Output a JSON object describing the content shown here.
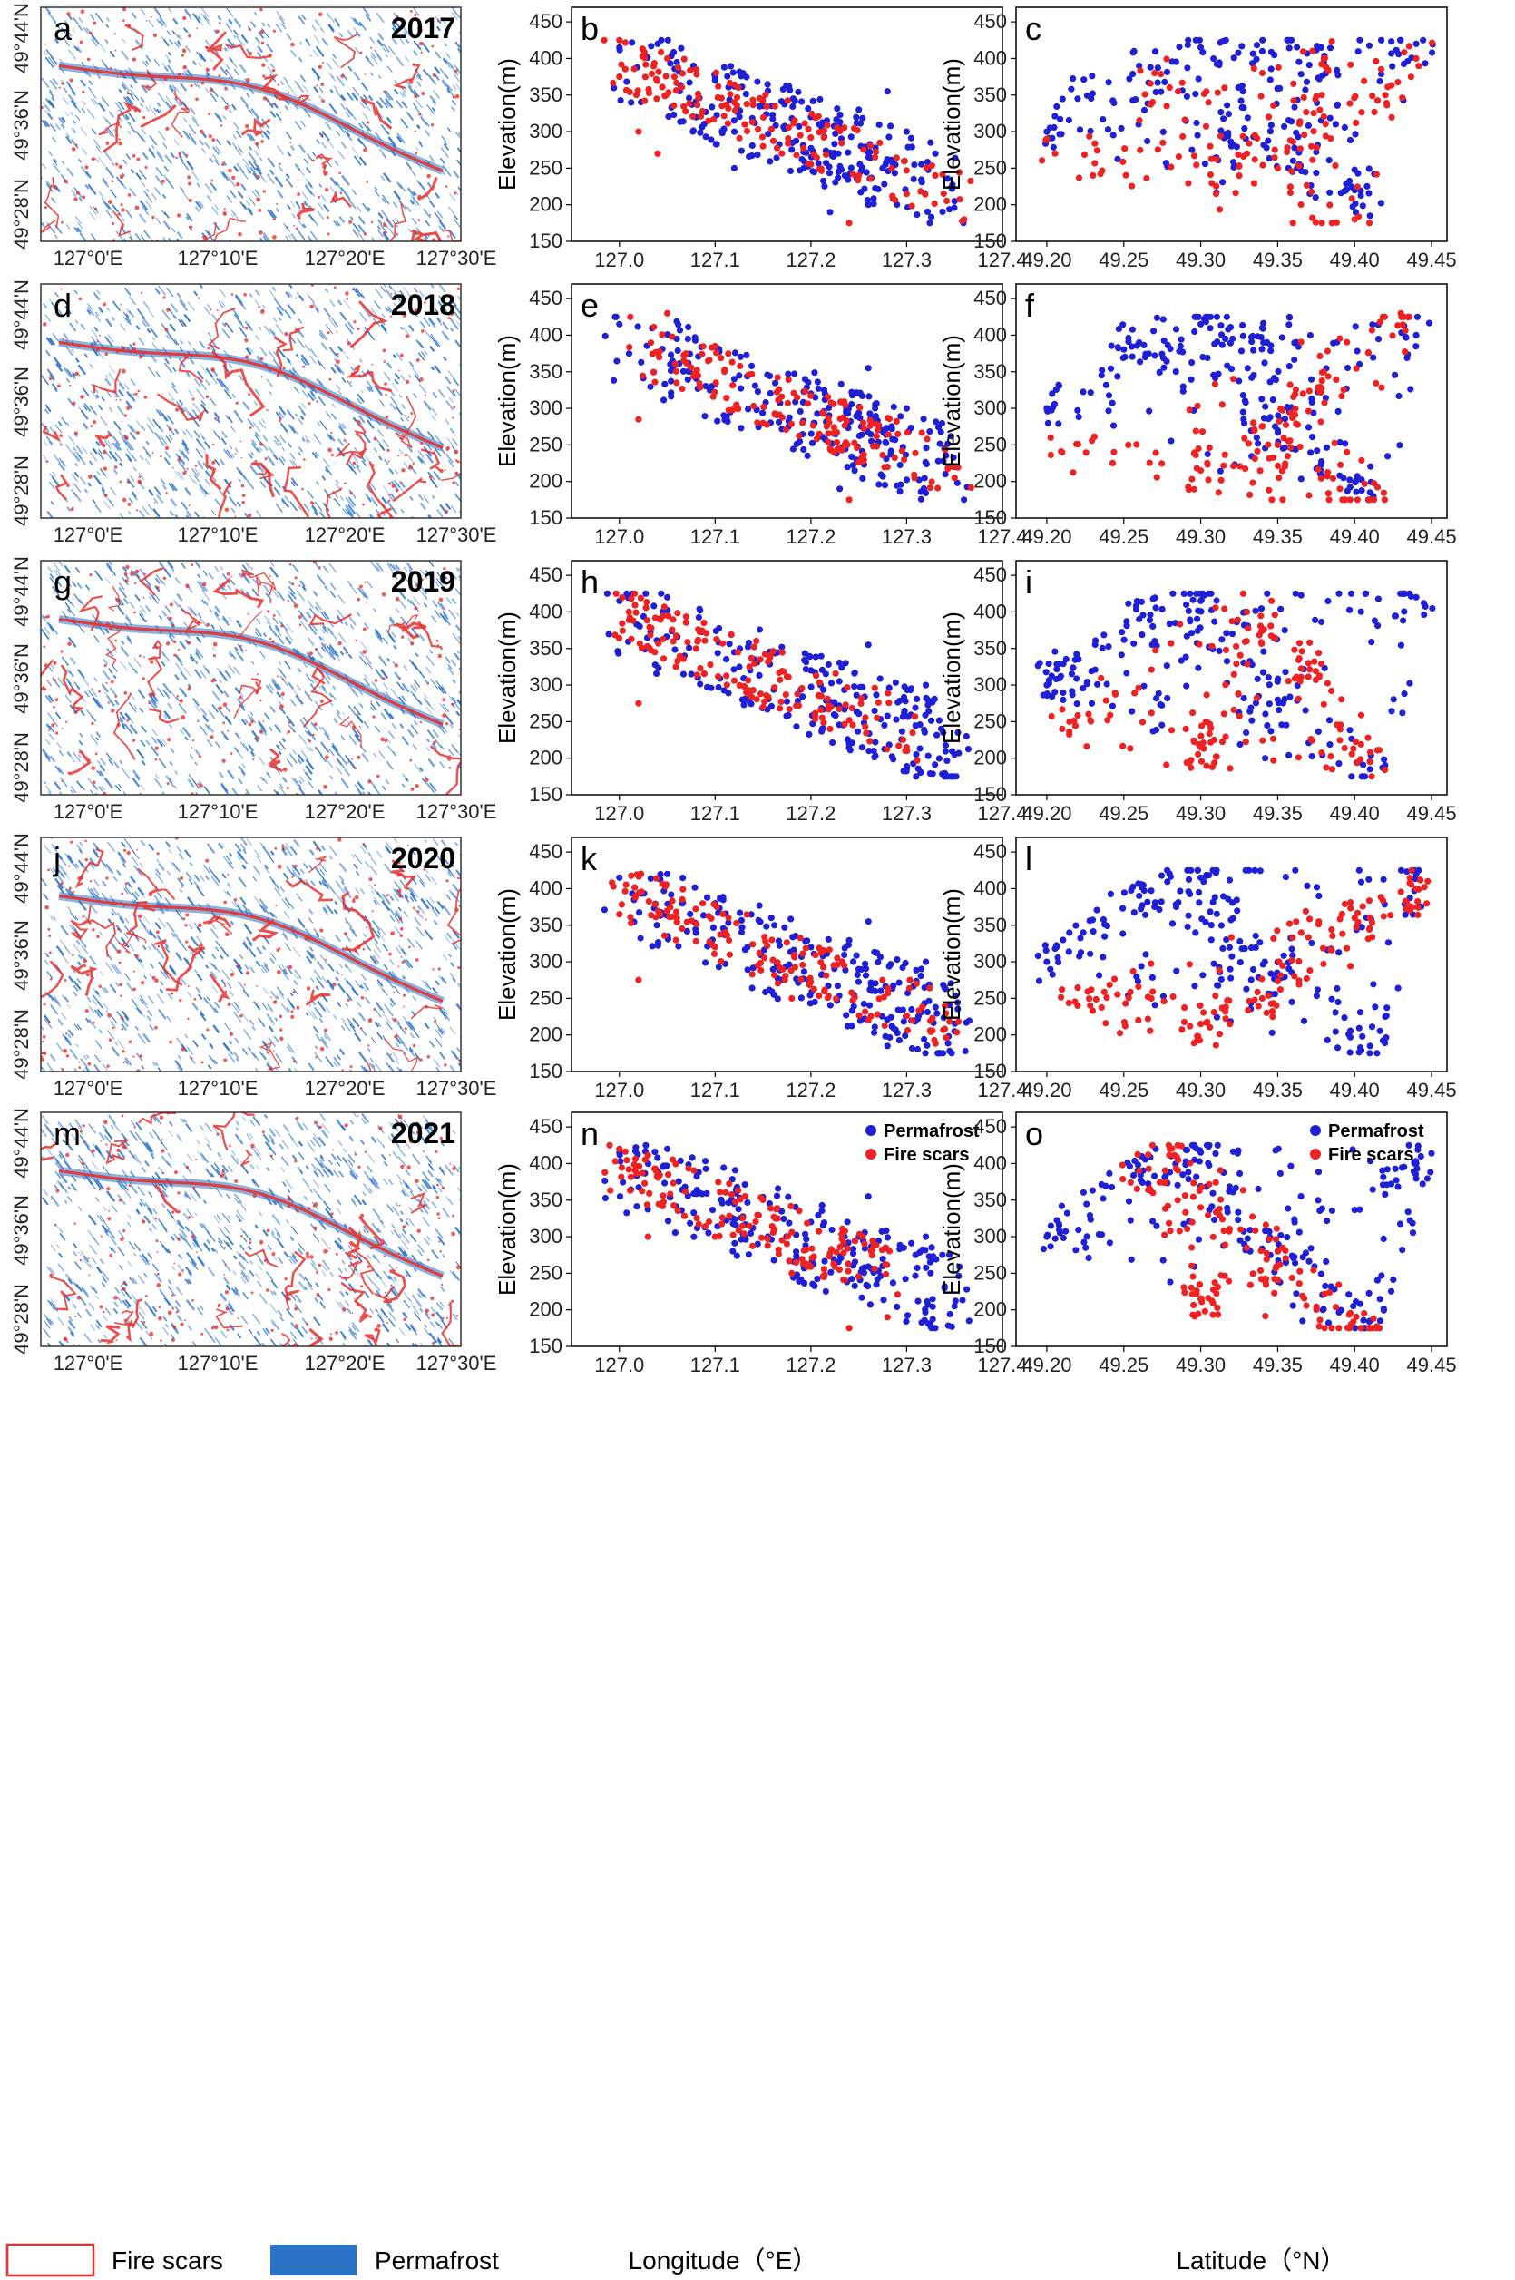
{
  "figure": {
    "map_legend": {
      "fire_label": "Fire scars",
      "permafrost_label": "Permafrost"
    },
    "colors": {
      "permafrost": "#1f1fd6",
      "fire": "#ee2222",
      "map_fire": "#e8312f",
      "map_perm": "#2a72c8"
    },
    "map_x_ticks": [
      "127°0'E",
      "127°10'E",
      "127°20'E",
      "127°30'E"
    ],
    "map_y_ticks": [
      "49°44'N",
      "49°36'N",
      "49°28'N"
    ],
    "bottom_xlabels": {
      "longitude": "Longitude（°E）",
      "latitude": "Latitude（°N）"
    }
  },
  "maps": [
    {
      "letter": "a",
      "year": "2017"
    },
    {
      "letter": "d",
      "year": "2018"
    },
    {
      "letter": "g",
      "year": "2019"
    },
    {
      "letter": "j",
      "year": "2020"
    },
    {
      "letter": "m",
      "year": "2021"
    }
  ],
  "chart_data": [
    {
      "type": "scatter",
      "panel": "b",
      "x_var": "longitude",
      "ylabel": "Elevation(m)",
      "xlim": [
        126.95,
        127.4
      ],
      "ylim": [
        150,
        470
      ],
      "xticks": [
        "127.0",
        "127.1",
        "127.2",
        "127.3",
        "127.4"
      ],
      "yticks": [
        "150",
        "200",
        "250",
        "300",
        "350",
        "400",
        "450"
      ],
      "legend": false,
      "seed": 11,
      "series": [
        {
          "name": "Permafrost",
          "values": [
            [
              127.0,
              415
            ],
            [
              127.04,
              420
            ],
            [
              127.06,
              395
            ],
            [
              127.1,
              370
            ],
            [
              127.15,
              335
            ],
            [
              127.2,
              320
            ],
            [
              127.25,
              330
            ],
            [
              127.28,
              355
            ],
            [
              127.3,
              300
            ],
            [
              127.33,
              270
            ],
            [
              127.35,
              205
            ],
            [
              127.22,
              190
            ],
            [
              127.26,
              200
            ],
            [
              127.12,
              250
            ]
          ]
        },
        {
          "name": "Fire scars",
          "values": [
            [
              127.0,
              375
            ],
            [
              127.05,
              400
            ],
            [
              127.08,
              385
            ],
            [
              127.12,
              340
            ],
            [
              127.15,
              280
            ],
            [
              127.2,
              255
            ],
            [
              127.25,
              240
            ],
            [
              127.3,
              215
            ],
            [
              127.33,
              240
            ],
            [
              127.36,
              180
            ],
            [
              127.24,
              175
            ],
            [
              127.02,
              300
            ],
            [
              127.04,
              270
            ]
          ]
        }
      ]
    },
    {
      "type": "scatter",
      "panel": "c",
      "x_var": "latitude",
      "ylabel": "Elevation(m)",
      "xlim": [
        49.18,
        49.46
      ],
      "ylim": [
        150,
        470
      ],
      "xticks": [
        "49.20",
        "49.25",
        "49.30",
        "49.35",
        "49.40",
        "49.45"
      ],
      "yticks": [
        "150",
        "200",
        "250",
        "300",
        "350",
        "400",
        "450"
      ],
      "legend": false,
      "seed": 12,
      "series": [
        {
          "name": "Permafrost",
          "values": [
            [
              49.2,
              300
            ],
            [
              49.22,
              345
            ],
            [
              49.26,
              390
            ],
            [
              49.3,
              415
            ],
            [
              49.34,
              410
            ],
            [
              49.38,
              395
            ],
            [
              49.4,
              220
            ],
            [
              49.41,
              185
            ],
            [
              49.44,
              420
            ],
            [
              49.32,
              280
            ],
            [
              49.36,
              260
            ]
          ]
        },
        {
          "name": "Fire scars",
          "values": [
            [
              49.2,
              290
            ],
            [
              49.23,
              240
            ],
            [
              49.27,
              380
            ],
            [
              49.31,
              215
            ],
            [
              49.35,
              250
            ],
            [
              49.38,
              400
            ],
            [
              49.4,
              180
            ],
            [
              49.42,
              350
            ],
            [
              49.44,
              400
            ],
            [
              49.33,
              270
            ]
          ]
        }
      ]
    },
    {
      "type": "scatter",
      "panel": "e",
      "x_var": "longitude",
      "ylabel": "Elevation(m)",
      "xlim": [
        126.95,
        127.4
      ],
      "ylim": [
        150,
        470
      ],
      "xticks": [
        "127.0",
        "127.1",
        "127.2",
        "127.3",
        "127.4"
      ],
      "yticks": [
        "150",
        "200",
        "250",
        "300",
        "350",
        "400",
        "450"
      ],
      "legend": false,
      "seed": 21,
      "series": [
        {
          "name": "Permafrost",
          "values": [
            [
              127.0,
              415
            ],
            [
              127.06,
              395
            ],
            [
              127.12,
              340
            ],
            [
              127.2,
              320
            ],
            [
              127.26,
              355
            ],
            [
              127.3,
              300
            ],
            [
              127.35,
              220
            ],
            [
              127.23,
              190
            ]
          ]
        },
        {
          "name": "Fire scars",
          "values": [
            [
              127.05,
              430
            ],
            [
              127.1,
              385
            ],
            [
              127.15,
              280
            ],
            [
              127.22,
              245
            ],
            [
              127.28,
              220
            ],
            [
              127.35,
              205
            ],
            [
              127.24,
              175
            ],
            [
              127.02,
              285
            ]
          ]
        }
      ]
    },
    {
      "type": "scatter",
      "panel": "f",
      "x_var": "latitude",
      "ylabel": "Elevation(m)",
      "xlim": [
        49.18,
        49.46
      ],
      "ylim": [
        150,
        470
      ],
      "xticks": [
        "49.20",
        "49.25",
        "49.30",
        "49.35",
        "49.40",
        "49.45"
      ],
      "yticks": [
        "150",
        "200",
        "250",
        "300",
        "350",
        "400",
        "450"
      ],
      "legend": false,
      "seed": 22,
      "series": [
        {
          "name": "Permafrost",
          "values": [
            [
              49.2,
              300
            ],
            [
              49.26,
              390
            ],
            [
              49.3,
              415
            ],
            [
              49.34,
              410
            ],
            [
              49.41,
              185
            ],
            [
              49.44,
              400
            ],
            [
              49.35,
              270
            ]
          ]
        },
        {
          "name": "Fire scars",
          "values": [
            [
              49.21,
              240
            ],
            [
              49.3,
              215
            ],
            [
              49.35,
              250
            ],
            [
              49.43,
              430
            ],
            [
              49.41,
              175
            ],
            [
              49.38,
              350
            ]
          ]
        }
      ]
    },
    {
      "type": "scatter",
      "panel": "h",
      "x_var": "longitude",
      "ylabel": "Elevation(m)",
      "xlim": [
        126.95,
        127.4
      ],
      "ylim": [
        150,
        470
      ],
      "xticks": [
        "127.0",
        "127.1",
        "127.2",
        "127.3",
        "127.4"
      ],
      "yticks": [
        "150",
        "200",
        "250",
        "300",
        "350",
        "400",
        "450"
      ],
      "legend": false,
      "seed": 31,
      "series": [
        {
          "name": "Permafrost",
          "values": [
            [
              127.0,
              415
            ],
            [
              127.05,
              420
            ],
            [
              127.12,
              345
            ],
            [
              127.2,
              320
            ],
            [
              127.26,
              355
            ],
            [
              127.32,
              300
            ],
            [
              127.35,
              205
            ],
            [
              127.3,
              185
            ]
          ]
        },
        {
          "name": "Fire scars",
          "values": [
            [
              127.01,
              400
            ],
            [
              127.08,
              350
            ],
            [
              127.15,
              270
            ],
            [
              127.22,
              240
            ],
            [
              127.3,
              215
            ],
            [
              127.02,
              275
            ]
          ]
        }
      ]
    },
    {
      "type": "scatter",
      "panel": "i",
      "x_var": "latitude",
      "ylabel": "Elevation(m)",
      "xlim": [
        49.18,
        49.46
      ],
      "ylim": [
        150,
        470
      ],
      "xticks": [
        "49.20",
        "49.25",
        "49.30",
        "49.35",
        "49.40",
        "49.45"
      ],
      "yticks": [
        "150",
        "200",
        "250",
        "300",
        "350",
        "400",
        "450"
      ],
      "legend": false,
      "seed": 32,
      "series": [
        {
          "name": "Permafrost",
          "values": [
            [
              49.2,
              300
            ],
            [
              49.26,
              390
            ],
            [
              49.3,
              415
            ],
            [
              49.41,
              185
            ],
            [
              49.44,
              420
            ],
            [
              49.35,
              280
            ]
          ]
        },
        {
          "name": "Fire scars",
          "values": [
            [
              49.21,
              240
            ],
            [
              49.3,
              215
            ],
            [
              49.33,
              400
            ],
            [
              49.37,
              330
            ],
            [
              49.41,
              195
            ]
          ]
        }
      ]
    },
    {
      "type": "scatter",
      "panel": "k",
      "x_var": "longitude",
      "ylabel": "Elevation(m)",
      "xlim": [
        126.95,
        127.4
      ],
      "ylim": [
        150,
        470
      ],
      "xticks": [
        "127.0",
        "127.1",
        "127.2",
        "127.3",
        "127.4"
      ],
      "yticks": [
        "150",
        "200",
        "250",
        "300",
        "350",
        "400",
        "450"
      ],
      "legend": false,
      "seed": 41,
      "series": [
        {
          "name": "Permafrost",
          "values": [
            [
              127.0,
              415
            ],
            [
              127.05,
              420
            ],
            [
              127.1,
              380
            ],
            [
              127.2,
              320
            ],
            [
              127.26,
              355
            ],
            [
              127.32,
              300
            ],
            [
              127.35,
              205
            ],
            [
              127.28,
              185
            ]
          ]
        },
        {
          "name": "Fire scars",
          "values": [
            [
              127.0,
              365
            ],
            [
              127.06,
              360
            ],
            [
              127.1,
              320
            ],
            [
              127.18,
              250
            ],
            [
              127.26,
              220
            ],
            [
              127.34,
              240
            ],
            [
              127.02,
              275
            ]
          ]
        }
      ]
    },
    {
      "type": "scatter",
      "panel": "l",
      "x_var": "latitude",
      "ylabel": "Elevation(m)",
      "xlim": [
        49.18,
        49.46
      ],
      "ylim": [
        150,
        470
      ],
      "xticks": [
        "49.20",
        "49.25",
        "49.30",
        "49.35",
        "49.40",
        "49.45"
      ],
      "yticks": [
        "150",
        "200",
        "250",
        "300",
        "350",
        "400",
        "450"
      ],
      "legend": false,
      "seed": 42,
      "series": [
        {
          "name": "Permafrost",
          "values": [
            [
              49.2,
              300
            ],
            [
              49.26,
              390
            ],
            [
              49.3,
              415
            ],
            [
              49.41,
              185
            ],
            [
              49.44,
              420
            ],
            [
              49.35,
              280
            ]
          ]
        },
        {
          "name": "Fire scars",
          "values": [
            [
              49.22,
              240
            ],
            [
              49.3,
              215
            ],
            [
              49.34,
              250
            ],
            [
              49.4,
              360
            ],
            [
              49.44,
              400
            ]
          ]
        }
      ]
    },
    {
      "type": "scatter",
      "panel": "n",
      "x_var": "longitude",
      "ylabel": "Elevation(m)",
      "xlim": [
        126.95,
        127.4
      ],
      "ylim": [
        150,
        470
      ],
      "xticks": [
        "127.0",
        "127.1",
        "127.2",
        "127.3",
        "127.4"
      ],
      "yticks": [
        "150",
        "200",
        "250",
        "300",
        "350",
        "400",
        "450"
      ],
      "legend": true,
      "legend_loc": "top-right",
      "seed": 51,
      "series": [
        {
          "name": "Permafrost",
          "values": [
            [
              127.0,
              415
            ],
            [
              127.05,
              420
            ],
            [
              127.12,
              345
            ],
            [
              127.2,
              320
            ],
            [
              127.26,
              355
            ],
            [
              127.32,
              300
            ],
            [
              127.35,
              205
            ]
          ]
        },
        {
          "name": "Fire scars",
          "values": [
            [
              127.0,
              420
            ],
            [
              127.03,
              300
            ],
            [
              127.1,
              300
            ],
            [
              127.18,
              250
            ],
            [
              127.24,
              175
            ],
            [
              127.28,
              190
            ]
          ]
        }
      ]
    },
    {
      "type": "scatter",
      "panel": "o",
      "x_var": "latitude",
      "ylabel": "Elevation(m)",
      "xlim": [
        49.18,
        49.46
      ],
      "ylim": [
        150,
        470
      ],
      "xticks": [
        "49.20",
        "49.25",
        "49.30",
        "49.35",
        "49.40",
        "49.45"
      ],
      "yticks": [
        "150",
        "200",
        "250",
        "300",
        "350",
        "400",
        "450"
      ],
      "legend": true,
      "legend_loc": "top-right",
      "seed": 52,
      "series": [
        {
          "name": "Permafrost",
          "values": [
            [
              49.2,
              300
            ],
            [
              49.26,
              390
            ],
            [
              49.3,
              415
            ],
            [
              49.41,
              185
            ],
            [
              49.44,
              400
            ],
            [
              49.35,
              280
            ]
          ]
        },
        {
          "name": "Fire scars",
          "values": [
            [
              49.26,
              390
            ],
            [
              49.28,
              420
            ],
            [
              49.3,
              215
            ],
            [
              49.35,
              260
            ],
            [
              49.41,
              175
            ]
          ]
        }
      ]
    }
  ]
}
